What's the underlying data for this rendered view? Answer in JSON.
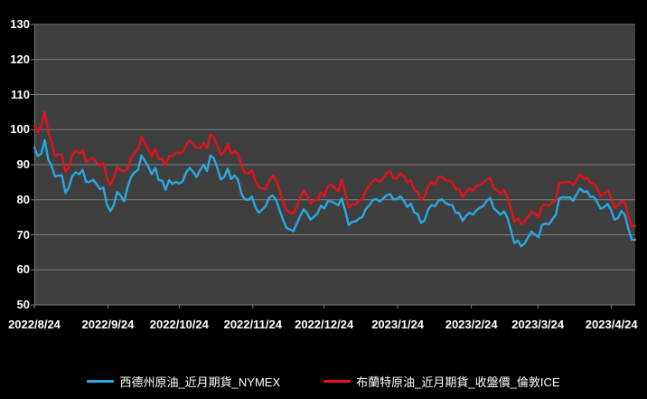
{
  "chart_data": {
    "type": "line",
    "title": "",
    "xlabel": "",
    "ylabel": "",
    "ylim": [
      50,
      130
    ],
    "yticks": [
      50,
      60,
      70,
      80,
      90,
      100,
      110,
      120,
      130
    ],
    "grid": "horizontal",
    "legend_position": "bottom",
    "colors": {
      "page_background": "#000000",
      "plot_background": "#3f3f3f",
      "gridline": "#7f7f7f",
      "text": "#ffffff"
    },
    "xticks": [
      {
        "label": "2022/8/24",
        "pos": 0.0
      },
      {
        "label": "2022/9/24",
        "pos": 0.1225
      },
      {
        "label": "2022/10/24",
        "pos": 0.2411
      },
      {
        "label": "2022/11/24",
        "pos": 0.3636
      },
      {
        "label": "2022/12/24",
        "pos": 0.4822
      },
      {
        "label": "2023/1/24",
        "pos": 0.6047
      },
      {
        "label": "2023/2/24",
        "pos": 0.7273
      },
      {
        "label": "2023/3/24",
        "pos": 0.8379
      },
      {
        "label": "2023/4/24",
        "pos": 0.9605
      }
    ],
    "series": [
      {
        "name": "西德州原油_近月期貨_NYMEX",
        "color": "#29a8e0",
        "values": [
          94.9,
          92.5,
          93.1,
          97.0,
          91.6,
          89.6,
          86.6,
          86.9,
          86.9,
          81.9,
          83.5,
          86.8,
          87.8,
          87.3,
          88.5,
          85.1,
          85.1,
          85.7,
          84.5,
          83.0,
          83.5,
          78.7,
          76.7,
          78.5,
          82.2,
          81.2,
          79.5,
          83.6,
          86.5,
          87.8,
          88.5,
          92.6,
          91.1,
          89.4,
          87.3,
          89.1,
          85.6,
          85.5,
          82.8,
          85.6,
          84.5,
          85.1,
          84.6,
          85.3,
          87.9,
          89.1,
          87.9,
          86.5,
          88.4,
          90.0,
          88.2,
          92.6,
          91.8,
          89.0,
          85.8,
          86.5,
          88.9,
          85.9,
          86.9,
          85.6,
          81.6,
          80.1,
          80.0,
          80.9,
          77.9,
          76.3,
          77.2,
          78.2,
          80.6,
          81.2,
          80.0,
          77.0,
          74.3,
          72.0,
          71.5,
          71.0,
          73.2,
          75.4,
          77.3,
          76.1,
          74.3,
          75.2,
          76.1,
          78.3,
          77.5,
          79.6,
          79.5,
          79.0,
          78.4,
          80.3,
          77.0,
          72.8,
          73.7,
          73.8,
          74.6,
          75.1,
          77.4,
          78.4,
          79.9,
          80.2,
          79.5,
          80.3,
          81.3,
          81.6,
          80.1,
          80.2,
          81.0,
          79.7,
          77.9,
          78.9,
          76.4,
          75.9,
          73.4,
          74.1,
          77.1,
          78.5,
          78.1,
          79.7,
          80.1,
          79.1,
          78.6,
          78.5,
          76.3,
          76.2,
          74.0,
          75.4,
          76.3,
          75.7,
          77.0,
          77.7,
          78.2,
          79.7,
          80.5,
          77.6,
          76.7,
          75.7,
          76.7,
          74.8,
          71.3,
          67.6,
          68.4,
          66.7,
          67.6,
          69.3,
          70.9,
          70.0,
          69.3,
          72.8,
          73.2,
          73.0,
          74.4,
          75.7,
          80.4,
          80.7,
          80.6,
          80.7,
          79.7,
          81.5,
          83.3,
          82.2,
          82.5,
          80.8,
          80.9,
          79.2,
          77.4,
          77.9,
          78.8,
          77.1,
          74.3,
          74.8,
          76.8,
          75.7,
          71.7,
          68.6,
          68.6
        ]
      },
      {
        "name": "布蘭特原油_近月期貨_收盤價_倫敦ICE",
        "color": "#e0141a",
        "values": [
          101.2,
          99.3,
          101.0,
          105.1,
          99.3,
          96.5,
          92.4,
          93.0,
          92.8,
          88.0,
          89.2,
          92.8,
          94.0,
          93.2,
          94.1,
          90.8,
          91.4,
          92.0,
          90.6,
          89.8,
          90.5,
          86.2,
          84.1,
          86.3,
          89.3,
          88.5,
          88.0,
          88.9,
          91.8,
          93.4,
          94.4,
          97.9,
          96.2,
          94.3,
          92.5,
          94.6,
          91.6,
          91.6,
          90.0,
          92.4,
          92.4,
          93.5,
          93.3,
          93.5,
          95.7,
          96.9,
          95.8,
          94.8,
          94.7,
          96.2,
          94.7,
          98.6,
          97.9,
          95.4,
          92.7,
          93.7,
          96.0,
          93.1,
          93.9,
          92.9,
          89.8,
          87.6,
          87.5,
          88.4,
          85.4,
          83.6,
          83.2,
          83.0,
          85.4,
          86.9,
          85.6,
          82.7,
          79.4,
          77.2,
          76.2,
          76.1,
          78.0,
          80.7,
          82.7,
          81.2,
          79.0,
          79.8,
          80.0,
          82.2,
          81.0,
          83.9,
          84.3,
          83.3,
          82.3,
          85.9,
          82.1,
          77.8,
          78.7,
          78.6,
          79.7,
          80.1,
          82.7,
          84.0,
          85.3,
          85.9,
          85.0,
          86.2,
          87.6,
          88.2,
          86.1,
          86.1,
          87.5,
          86.7,
          84.9,
          85.5,
          82.8,
          82.2,
          80.0,
          81.0,
          83.7,
          85.1,
          84.5,
          86.4,
          86.6,
          85.6,
          85.4,
          85.1,
          83.0,
          83.1,
          80.6,
          82.2,
          83.2,
          82.5,
          83.9,
          84.3,
          84.8,
          85.8,
          86.2,
          83.3,
          82.7,
          81.6,
          82.8,
          80.8,
          77.5,
          73.7,
          74.7,
          73.0,
          73.8,
          75.3,
          76.7,
          76.0,
          75.0,
          78.1,
          78.7,
          78.3,
          79.3,
          79.9,
          84.9,
          84.9,
          85.0,
          85.1,
          84.2,
          85.6,
          87.3,
          86.1,
          86.3,
          84.8,
          84.8,
          83.1,
          81.1,
          81.7,
          82.7,
          80.8,
          77.7,
          78.4,
          79.5,
          79.3,
          75.3,
          72.3,
          72.5
        ]
      }
    ]
  }
}
